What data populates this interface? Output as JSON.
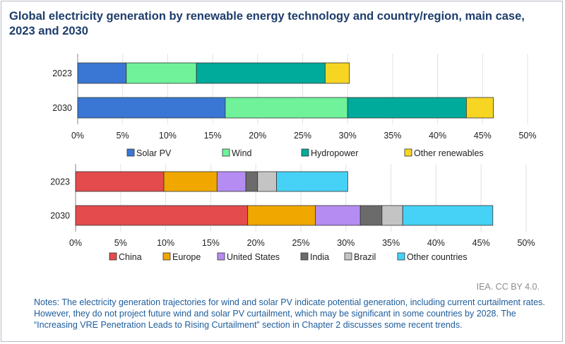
{
  "title": "Global electricity generation by renewable energy technology and country/region, main case, 2023 and 2030",
  "credit": "IEA. CC BY 4.0.",
  "notes": "Notes: The electricity generation trajectories for wind and solar PV indicate potential generation, including current curtailment rates. However, they do not project future wind and solar PV curtailment, which may be significant in some countries by 2028. The “Increasing VRE Penetration Leads to Rising Curtailment” section in Chapter 2 discusses some recent trends.",
  "chart_data": [
    {
      "type": "bar",
      "orientation": "horizontal",
      "stacked": true,
      "categories": [
        "2023",
        "2030"
      ],
      "xlim": [
        0,
        50
      ],
      "x_ticks": [
        "0%",
        "5%",
        "10%",
        "15%",
        "20%",
        "25%",
        "30%",
        "35%",
        "40%",
        "45%",
        "50%"
      ],
      "grid": true,
      "legend_position": "bottom",
      "series": [
        {
          "name": "Solar PV",
          "color": "#3a77d4",
          "values": [
            5.4,
            16.4
          ]
        },
        {
          "name": "Wind",
          "color": "#6ff29a",
          "values": [
            7.8,
            13.6
          ]
        },
        {
          "name": "Hydropower",
          "color": "#00ab9b",
          "values": [
            14.3,
            13.2
          ]
        },
        {
          "name": "Other renewables",
          "color": "#f7d523",
          "values": [
            2.7,
            3.0
          ]
        }
      ]
    },
    {
      "type": "bar",
      "orientation": "horizontal",
      "stacked": true,
      "categories": [
        "2023",
        "2030"
      ],
      "xlim": [
        0,
        50
      ],
      "x_ticks": [
        "0%",
        "5%",
        "10%",
        "15%",
        "20%",
        "25%",
        "30%",
        "35%",
        "40%",
        "45%",
        "50%"
      ],
      "grid": true,
      "legend_position": "bottom",
      "series": [
        {
          "name": "China",
          "color": "#e34b4d",
          "values": [
            9.8,
            19.1
          ]
        },
        {
          "name": "Europe",
          "color": "#f0a800",
          "values": [
            5.9,
            7.5
          ]
        },
        {
          "name": "United States",
          "color": "#b48cf2",
          "values": [
            3.2,
            5.0
          ]
        },
        {
          "name": "India",
          "color": "#6b6b6b",
          "values": [
            1.3,
            2.4
          ]
        },
        {
          "name": "Brazil",
          "color": "#c4c4c4",
          "values": [
            2.1,
            2.3
          ]
        },
        {
          "name": "Other countries",
          "color": "#46d2f6",
          "values": [
            7.9,
            10.0
          ]
        }
      ]
    }
  ]
}
